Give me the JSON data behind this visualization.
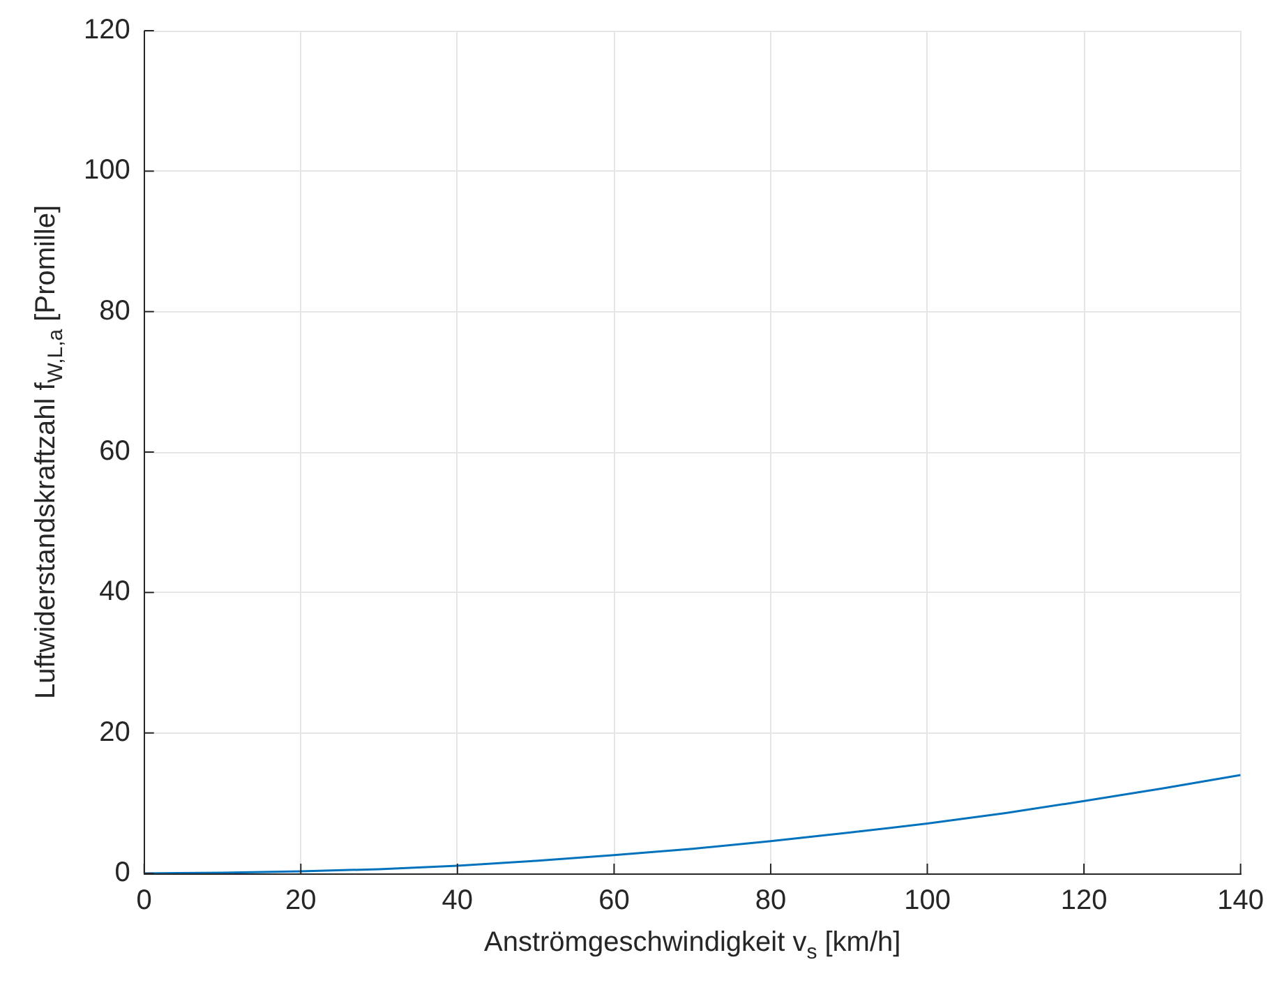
{
  "chart_data": {
    "type": "line",
    "xlabel": "Anströmgeschwindigkeit v$_{s}$ [km/h]",
    "ylabel": "Luftwiderstandskraftzahl f$_{W,L,a}$ [Promille]",
    "series": [
      {
        "color": "#0072bd",
        "x": [
          0,
          10,
          20,
          30,
          40,
          50,
          60,
          70,
          80,
          90,
          100,
          110,
          120,
          130,
          140
        ],
        "values": [
          0,
          0.1,
          0.3,
          0.6,
          1.1,
          1.8,
          2.6,
          3.5,
          4.6,
          5.8,
          7.1,
          8.6,
          10.3,
          12.1,
          14.0
        ]
      }
    ],
    "xlim": [
      0,
      140
    ],
    "xticks": [
      0,
      20,
      40,
      60,
      80,
      100,
      120,
      140
    ],
    "ylim": [
      0,
      120
    ],
    "yticks": [
      0,
      20,
      40,
      60,
      80,
      100,
      120
    ],
    "grid": true,
    "legend": false,
    "marker": "none",
    "line_style": "solid"
  }
}
